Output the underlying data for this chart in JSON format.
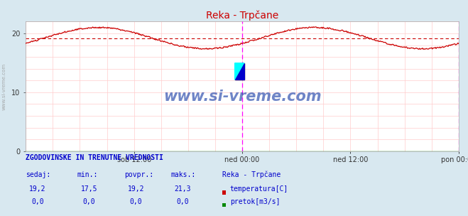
{
  "title": "Reka - Trpčane",
  "title_color": "#cc0000",
  "bg_color": "#d8e8f0",
  "plot_bg_color": "#ffffff",
  "grid_color": "#ffcccc",
  "ylim": [
    0,
    22
  ],
  "yticks": [
    0,
    10,
    20
  ],
  "xlabel_ticks": [
    "sob 12:00",
    "ned 00:00",
    "ned 12:00",
    "pon 00:00"
  ],
  "xlabel_tick_positions": [
    0.25,
    0.5,
    0.75,
    1.0
  ],
  "avg_line_value": 19.2,
  "avg_line_color": "#cc0000",
  "temp_line_color": "#cc0000",
  "pretok_line_color": "#008800",
  "magenta_vlines": [
    0.5,
    1.0
  ],
  "watermark": "www.si-vreme.com",
  "watermark_color": "#2244aa",
  "left_label_color": "#888888",
  "table_header": "ZGODOVINSKE IN TRENUTNE VREDNOSTI",
  "table_col_headers": [
    "sedaj:",
    "min.:",
    "povpr.:",
    "maks.:",
    "Reka - Trpčane"
  ],
  "table_row1_vals": [
    "19,2",
    "17,5",
    "19,2",
    "21,3"
  ],
  "table_row1_label": "temperatura[C]",
  "table_row1_color": "#cc0000",
  "table_row2_vals": [
    "0,0",
    "0,0",
    "0,0",
    "0,0"
  ],
  "table_row2_label": "pretok[m3/s]",
  "table_row2_color": "#008800",
  "table_text_color": "#0000cc",
  "table_header_color": "#0000cc"
}
